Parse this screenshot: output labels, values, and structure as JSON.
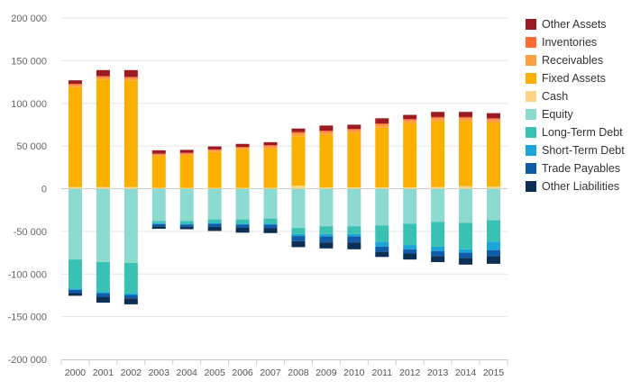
{
  "chart_data": {
    "type": "bar",
    "stacked": true,
    "categories": [
      "2000",
      "2001",
      "2002",
      "2003",
      "2004",
      "2005",
      "2006",
      "2007",
      "2008",
      "2009",
      "2010",
      "2011",
      "2012",
      "2013",
      "2014",
      "2015"
    ],
    "ylim": [
      -200000,
      200000
    ],
    "yticks": [
      200000,
      150000,
      100000,
      50000,
      0,
      -50000,
      -100000,
      -150000,
      -200000
    ],
    "ytick_labels": [
      "200 000",
      "150 000",
      "100 000",
      "50 000",
      "0",
      "-50 000",
      "-100 000",
      "-150 000",
      "-200 000"
    ],
    "grid": true,
    "legend_position": "right",
    "series": [
      {
        "name": "Other Assets",
        "color": "#9b1b20",
        "values": [
          4000,
          7000,
          8000,
          4000,
          3500,
          3500,
          3500,
          3500,
          4000,
          6000,
          5000,
          6000,
          5000,
          6000,
          6000,
          6000
        ]
      },
      {
        "name": "Inventories",
        "color": "#ff6b35",
        "values": [
          1500,
          1500,
          1500,
          1000,
          1000,
          1000,
          1000,
          1500,
          1500,
          1500,
          1500,
          1500,
          1500,
          1500,
          1500,
          1500
        ]
      },
      {
        "name": "Receivables",
        "color": "#ffa040",
        "values": [
          2500,
          2500,
          2500,
          2000,
          2000,
          2000,
          2000,
          2500,
          3500,
          3000,
          3000,
          3500,
          3500,
          3500,
          3500,
          3500
        ]
      },
      {
        "name": "Fixed Assets",
        "color": "#fbb000",
        "values": [
          117000,
          126000,
          125000,
          37000,
          38000,
          42000,
          45000,
          46000,
          58000,
          62000,
          64000,
          70000,
          75000,
          77000,
          76000,
          75000
        ]
      },
      {
        "name": "Cash",
        "color": "#fdd584",
        "values": [
          2000,
          2000,
          2000,
          1000,
          1000,
          1000,
          1000,
          1000,
          3500,
          1500,
          1500,
          1500,
          1500,
          2000,
          3000,
          2500
        ]
      },
      {
        "name": "Equity",
        "color": "#8ddbd0",
        "values": [
          -83000,
          -86000,
          -87000,
          -38000,
          -38000,
          -36000,
          -36000,
          -35000,
          -46000,
          -44000,
          -44000,
          -43000,
          -41000,
          -39000,
          -40000,
          -37000
        ]
      },
      {
        "name": "Long-Term Debt",
        "color": "#39c1b3",
        "values": [
          -34000,
          -35000,
          -36000,
          -2500,
          -3000,
          -4000,
          -5000,
          -6000,
          -7000,
          -9000,
          -9000,
          -19000,
          -25000,
          -29000,
          -31000,
          -25000
        ]
      },
      {
        "name": "Short-Term Debt",
        "color": "#1aa7d8",
        "values": [
          -1500,
          -1500,
          -1500,
          -1000,
          -1000,
          -1000,
          -1000,
          -1000,
          -2500,
          -3000,
          -3000,
          -6000,
          -5000,
          -5000,
          -4000,
          -10000
        ]
      },
      {
        "name": "Trade Payables",
        "color": "#0f5ca8",
        "values": [
          -3500,
          -4000,
          -4000,
          -2500,
          -2500,
          -3500,
          -3500,
          -4000,
          -6000,
          -7000,
          -7000,
          -6000,
          -5000,
          -6000,
          -6000,
          -7000
        ]
      },
      {
        "name": "Other Liabilities",
        "color": "#0b2f55",
        "values": [
          -3500,
          -7000,
          -7000,
          -3000,
          -3000,
          -5000,
          -6000,
          -6000,
          -7000,
          -7000,
          -8000,
          -6000,
          -7000,
          -7000,
          -8000,
          -9000
        ]
      }
    ]
  }
}
